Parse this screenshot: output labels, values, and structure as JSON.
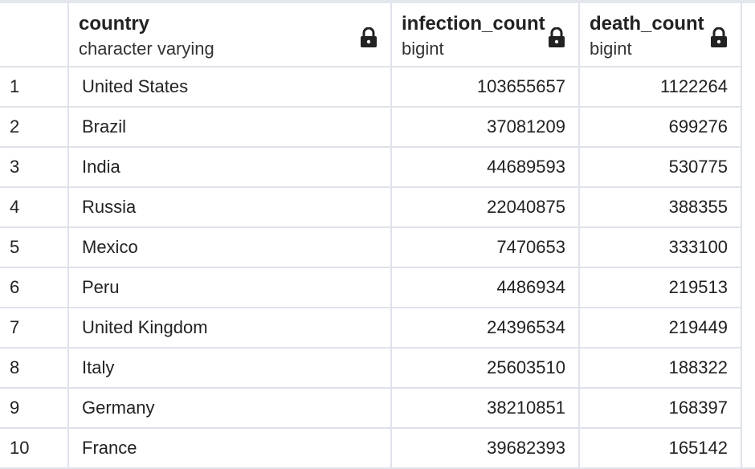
{
  "columns": [
    {
      "name": "country",
      "type": "character varying"
    },
    {
      "name": "infection_count",
      "type": "bigint"
    },
    {
      "name": "death_count",
      "type": "bigint"
    }
  ],
  "rows": [
    {
      "idx": "1",
      "country": "United States",
      "infection_count": "103655657",
      "death_count": "1122264"
    },
    {
      "idx": "2",
      "country": "Brazil",
      "infection_count": "37081209",
      "death_count": "699276"
    },
    {
      "idx": "3",
      "country": "India",
      "infection_count": "44689593",
      "death_count": "530775"
    },
    {
      "idx": "4",
      "country": "Russia",
      "infection_count": "22040875",
      "death_count": "388355"
    },
    {
      "idx": "5",
      "country": "Mexico",
      "infection_count": "7470653",
      "death_count": "333100"
    },
    {
      "idx": "6",
      "country": "Peru",
      "infection_count": "4486934",
      "death_count": "219513"
    },
    {
      "idx": "7",
      "country": "United Kingdom",
      "infection_count": "24396534",
      "death_count": "219449"
    },
    {
      "idx": "8",
      "country": "Italy",
      "infection_count": "25603510",
      "death_count": "188322"
    },
    {
      "idx": "9",
      "country": "Germany",
      "infection_count": "38210851",
      "death_count": "168397"
    },
    {
      "idx": "10",
      "country": "France",
      "infection_count": "39682393",
      "death_count": "165142"
    }
  ],
  "icons": {
    "column_lock": "lock-icon"
  },
  "colors": {
    "grid_line": "#dfe2ea",
    "text": "#222222"
  }
}
